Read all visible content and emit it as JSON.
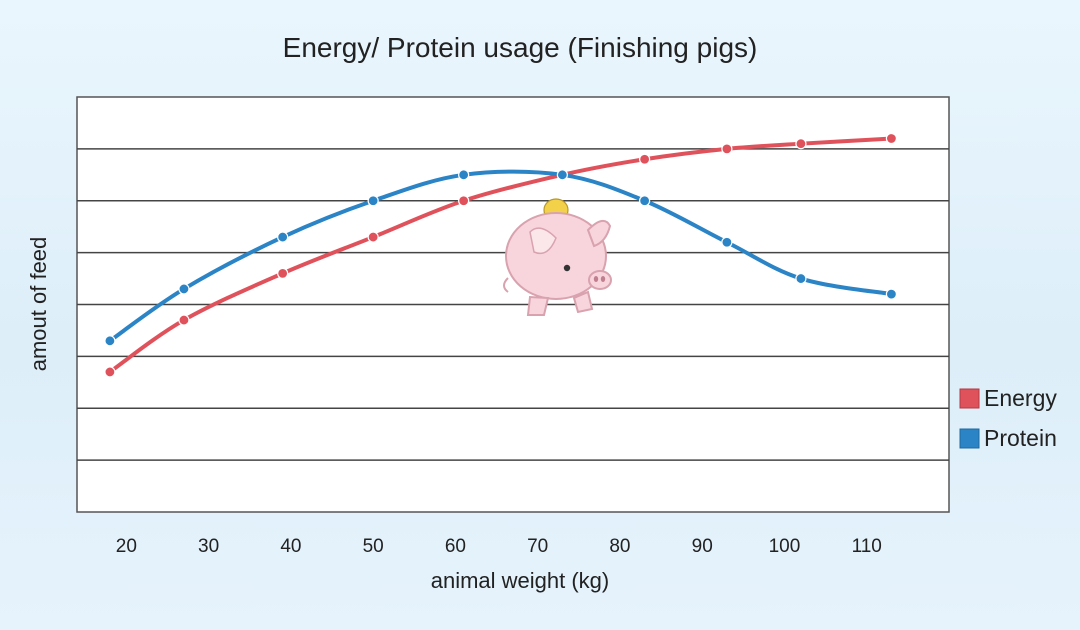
{
  "chart_data": {
    "type": "line",
    "title": "Energy/ Protein usage (Finishing pigs)",
    "xlabel": "animal weight (kg)",
    "ylabel": "amout of feed",
    "x_ticks": [
      "20",
      "30",
      "40",
      "50",
      "60",
      "70",
      "80",
      "90",
      "100",
      "110"
    ],
    "xlim": [
      14,
      120
    ],
    "ylim": [
      0,
      8
    ],
    "grid": true,
    "legend_position": "right",
    "series": [
      {
        "name": "Energy",
        "color": "#e0525b",
        "x": [
          18,
          27,
          39,
          50,
          61,
          73,
          83,
          93,
          102,
          113
        ],
        "y": [
          2.7,
          3.7,
          4.6,
          5.3,
          6.0,
          6.5,
          6.8,
          7.0,
          7.1,
          7.2
        ]
      },
      {
        "name": "Protein",
        "color": "#2b84c6",
        "x": [
          18,
          27,
          39,
          50,
          61,
          73,
          83,
          93,
          102,
          113
        ],
        "y": [
          3.3,
          4.3,
          5.3,
          6.0,
          6.5,
          6.5,
          6.0,
          5.2,
          4.5,
          4.2
        ]
      }
    ]
  }
}
